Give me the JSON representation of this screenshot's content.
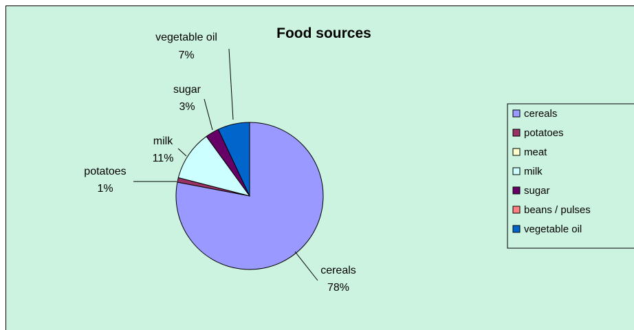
{
  "chart_data": {
    "type": "pie",
    "title": "Food sources",
    "categories": [
      "cereals",
      "potatoes",
      "meat",
      "milk",
      "sugar",
      "beans / pulses",
      "vegetable oil"
    ],
    "values": [
      78,
      1,
      0,
      11,
      3,
      0,
      7
    ],
    "data_labels": [
      "78%",
      "1%",
      "",
      "11%",
      "3%",
      "",
      "7%"
    ],
    "colors": [
      "#9999ff",
      "#993366",
      "#ffffcc",
      "#ccffff",
      "#660066",
      "#ff8080",
      "#0066cc"
    ],
    "legend": {
      "position": "right"
    },
    "start_angle": "12 o'clock",
    "direction": "clockwise"
  }
}
